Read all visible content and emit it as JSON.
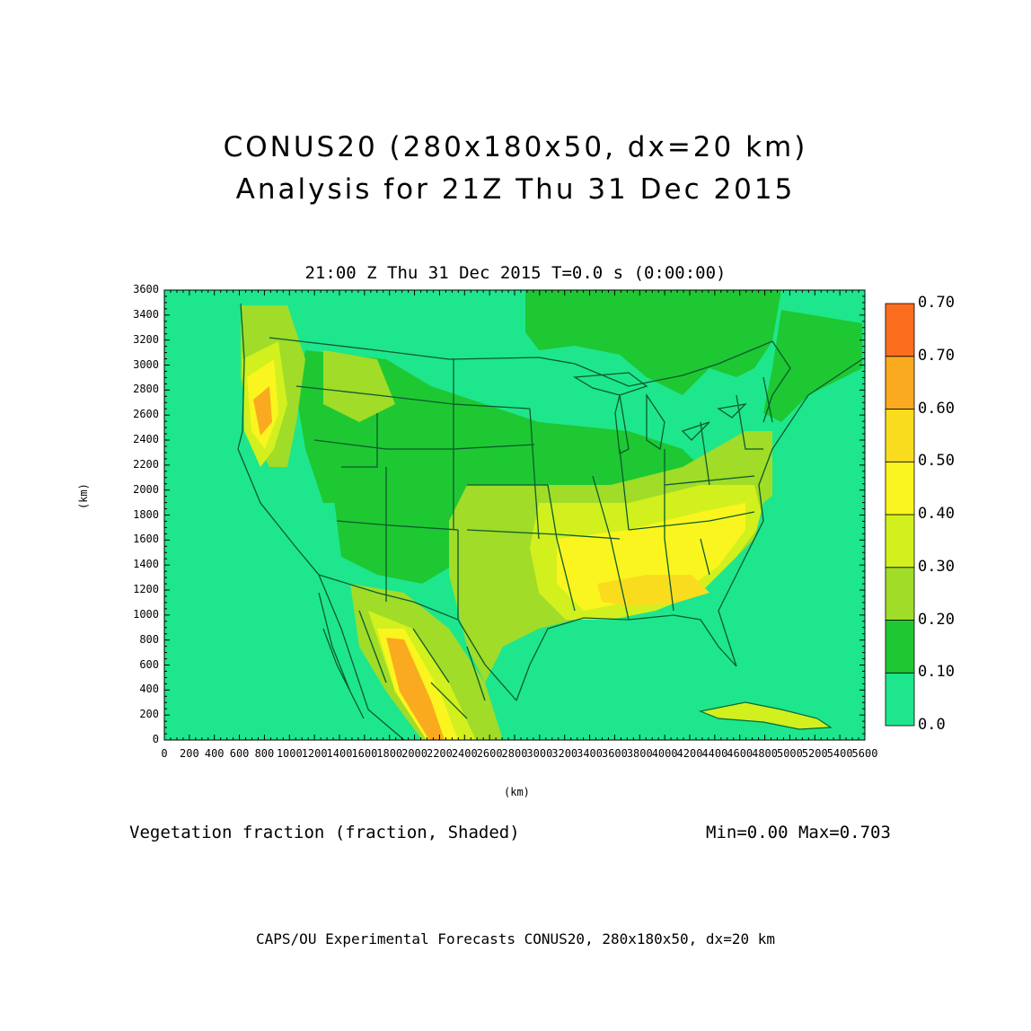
{
  "header": {
    "title_line1": "CONUS20 (280x180x50, dx=20 km)",
    "title_line2": "Analysis for 21Z Thu 31 Dec 2015",
    "valid_time": "21:00 Z Thu 31 Dec 2015    T=0.0 s (0:00:00)"
  },
  "axes": {
    "xlabel": "(km)",
    "ylabel": "(km)",
    "xticks": [
      "0",
      "200",
      "400",
      "600",
      "800",
      "1000",
      "1200",
      "1400",
      "1600",
      "1800",
      "2000",
      "2200",
      "2400",
      "2600",
      "2800",
      "3000",
      "3200",
      "3400",
      "3600",
      "3800",
      "4000",
      "4200",
      "4400",
      "4600",
      "4800",
      "5000",
      "5200",
      "5400",
      "5600"
    ],
    "yticks": [
      "0",
      "200",
      "400",
      "600",
      "800",
      "1000",
      "1200",
      "1400",
      "1600",
      "1800",
      "2000",
      "2200",
      "2400",
      "2600",
      "2800",
      "3000",
      "3200",
      "3400",
      "3600"
    ],
    "xlim": [
      0,
      5600
    ],
    "ylim": [
      0,
      3600
    ]
  },
  "colorbar": {
    "levels": [
      "0.0",
      "0.10",
      "0.20",
      "0.30",
      "0.40",
      "0.50",
      "0.60",
      "0.70",
      "0.70"
    ],
    "colors": [
      "#1ee68c",
      "#1ec832",
      "#a0dc28",
      "#d2f01e",
      "#faf51e",
      "#fadc1e",
      "#faaa1e",
      "#fa6e1e"
    ]
  },
  "field": {
    "name": "Vegetation fraction (fraction, Shaded)",
    "stats": "Min=0.00  Max=0.703"
  },
  "footer": "CAPS/OU Experimental Forecasts  CONUS20, 280x180x50, dx=20 km"
}
